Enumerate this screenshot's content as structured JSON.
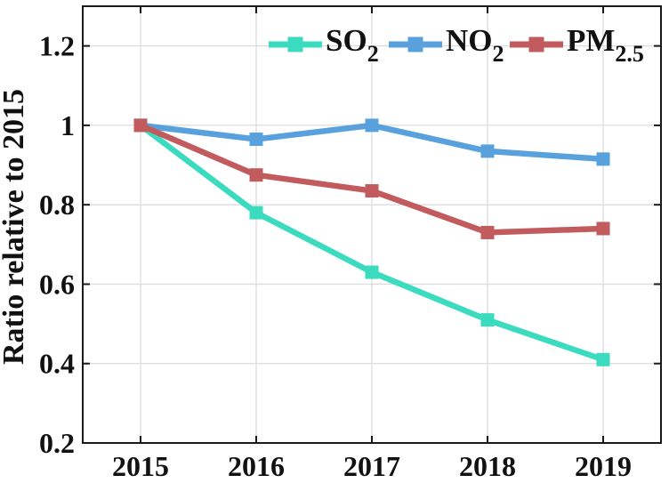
{
  "figure": {
    "background_color": "#ffffff",
    "axis_color": "#1a1a1a",
    "grid_color": "#dcdcdc",
    "text_color": "#111111"
  },
  "chart_data": {
    "type": "line",
    "title": "",
    "xlabel": "",
    "ylabel": "Ratio relative to 2015",
    "x": [
      2015,
      2016,
      2017,
      2018,
      2019
    ],
    "x_tick_labels": [
      "2015",
      "2016",
      "2017",
      "2018",
      "2019"
    ],
    "xlim": [
      2014.5,
      2019.5
    ],
    "ylim": [
      0.2,
      1.3
    ],
    "yticks": [
      0.2,
      0.4,
      0.6,
      0.8,
      1.0,
      1.2
    ],
    "y_tick_labels": [
      "0.2",
      "0.4",
      "0.6",
      "0.8",
      "1",
      "1.2"
    ],
    "grid": true,
    "box": true,
    "tick_direction": "in",
    "legend_position": "top-inside-horizontal",
    "marker": "square",
    "series": [
      {
        "id": "so2",
        "label_main": "SO",
        "label_sub": "2",
        "color": "#3BDBC0",
        "values": [
          1.0,
          0.78,
          0.63,
          0.51,
          0.41
        ]
      },
      {
        "id": "no2",
        "label_main": "NO",
        "label_sub": "2",
        "color": "#58A1DC",
        "values": [
          1.0,
          0.965,
          1.0,
          0.935,
          0.915
        ]
      },
      {
        "id": "pm25",
        "label_main": "PM",
        "label_sub": "2.5",
        "color": "#C25B5E",
        "values": [
          1.0,
          0.875,
          0.835,
          0.73,
          0.74
        ]
      }
    ]
  }
}
